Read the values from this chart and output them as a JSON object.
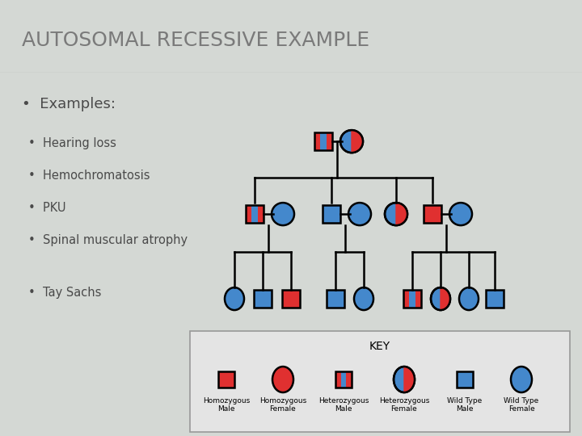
{
  "title": "AUTOSOMAL RECESSIVE EXAMPLE",
  "title_color": "#7a7a7a",
  "bg_color": "#d4d8d4",
  "header_bg": "#ffffff",
  "red": "#e03030",
  "blue": "#4488cc",
  "text_color": "#4a4a4a",
  "bullet_color": "#cc4433",
  "key_bg": "#e0e0e0",
  "key_border": "#888888",
  "bullet_main": "Examples:",
  "bullet_sub": [
    "Hearing loss",
    "Hemochromatosis",
    "PKU",
    "Spinal muscular atrophy",
    "Tay Sachs"
  ]
}
